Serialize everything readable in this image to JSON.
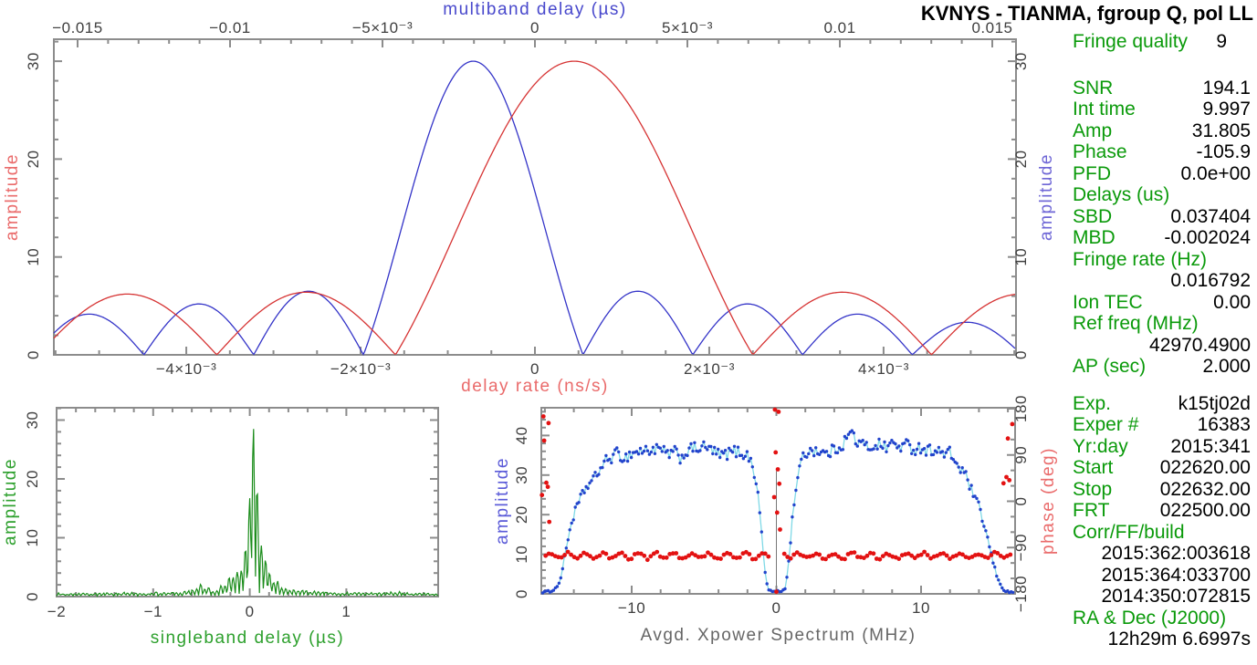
{
  "page_title": "KVNYS - TIANMA, fgroup Q, pol LL",
  "colors": {
    "red_curve": "#d63333",
    "blue_curve": "#3434c8",
    "green_curve": "#1a8c1a",
    "label_red": "#ea6b6b",
    "label_blue": "#5a5ad8",
    "label_blue_violet": "#6e66d6",
    "label_green": "#2da02d",
    "mbd_title_blue": "#4848cc",
    "info_green": "#0a9a0a",
    "spec_blue": "#2244cc",
    "cyan_line": "#7fd9e6",
    "spec_red": "#e31212",
    "frame_gray": "#8c8c8c",
    "tick_text": "#3f3f3f",
    "xpower_label_gray": "#666666",
    "marker_gray": "#777777",
    "black": "#000000"
  },
  "info_panel": {
    "rows": [
      {
        "label": "Fringe quality",
        "value": "9",
        "value_pad": 26
      },
      {
        "spacer": 27
      },
      {
        "label": "SNR",
        "value": "194.1"
      },
      {
        "label": "Int time",
        "value": "9.997"
      },
      {
        "label": "Amp",
        "value": "31.805"
      },
      {
        "label": "Phase",
        "value": "-105.9"
      },
      {
        "label": "PFD",
        "value": "0.0e+00"
      },
      {
        "label": "Delays (us)",
        "value": ""
      },
      {
        "label": "SBD",
        "value": "0.037404"
      },
      {
        "label": "MBD",
        "value": "-0.002024"
      },
      {
        "label": "Fringe rate (Hz)",
        "value": ""
      },
      {
        "label": "",
        "value": "0.016792"
      },
      {
        "label": "Ion TEC",
        "value": "0.00"
      },
      {
        "label": "Ref freq (MHz)",
        "value": ""
      },
      {
        "label": "",
        "value": "42970.4900"
      },
      {
        "label": "AP (sec)",
        "value": "2.000"
      },
      {
        "spacer": 17
      },
      {
        "label": "Exp.",
        "value": "k15tj02d"
      },
      {
        "label": "Exper #",
        "value": "16383"
      },
      {
        "label": "Yr:day",
        "value": "2015:341"
      },
      {
        "label": "Start",
        "value": "022620.00"
      },
      {
        "label": "Stop",
        "value": "022632.00"
      },
      {
        "label": "FRT",
        "value": "022500.00"
      },
      {
        "label": "Corr/FF/build",
        "value": ""
      },
      {
        "black_line": "2015:362:003618"
      },
      {
        "black_line": "2015:364:033700"
      },
      {
        "black_line": "2014:350:072815"
      },
      {
        "label": "RA & Dec (J2000)",
        "value": ""
      },
      {
        "black_line": "12h29m 6.6997s"
      }
    ]
  },
  "chart_data": [
    {
      "id": "delay-rate-multiband-fringe",
      "type": "line",
      "top_axis": {
        "label": "multiband delay (µs)",
        "unit": "µs",
        "tick_values": [
          -0.015,
          -0.01,
          -0.005,
          0,
          0.005,
          0.01,
          0.015
        ],
        "tick_labels": [
          "−0.015",
          "−0.01",
          "−5×10⁻³",
          "0",
          "5×10⁻³",
          "0.01",
          "0.015"
        ],
        "range": [
          -0.01578,
          0.01578
        ],
        "minor_step": 0.001
      },
      "bottom_axis": {
        "label": "delay rate (ns/s)",
        "unit": "ns/s",
        "tick_values": [
          -0.004,
          -0.002,
          0,
          0.002,
          0.004
        ],
        "tick_labels": [
          "−4×10⁻³",
          "−2×10⁻³",
          "0",
          "2×10⁻³",
          "4×10⁻³"
        ],
        "range": [
          -0.00552,
          0.00552
        ],
        "minor_step": 0.0005
      },
      "left_axis": {
        "label": "amplitude",
        "tick_values": [
          0,
          10,
          20,
          30
        ],
        "tick_labels": [
          "0",
          "10",
          "20",
          "30"
        ],
        "range": [
          0,
          32.2
        ],
        "minor_step": 2
      },
      "right_axis": {
        "label": "amplitude",
        "tick_values": [
          0,
          10,
          20,
          30
        ],
        "tick_labels": [
          "0",
          "10",
          "20",
          "30"
        ],
        "range": [
          0,
          32.2
        ],
        "minor_step": 2
      },
      "series": [
        {
          "name": "multiband delay fringe",
          "color_key": "blue_curve",
          "axis": "top",
          "peak_x": -0.002024,
          "peak_amplitude": 30.0,
          "first_null_halfwidth": 0.0036,
          "sidelobe_amplitude": 6.5,
          "sidelobe_decay": 0.8
        },
        {
          "name": "delay rate fringe",
          "color_key": "red_curve",
          "axis": "bottom",
          "peak_x": 0.00045,
          "peak_amplitude": 30.0,
          "first_null_halfwidth": 0.00205,
          "sidelobe_amplitude": 6.4,
          "sidelobe_decay": 0.97
        }
      ]
    },
    {
      "id": "singleband-delay-fringe",
      "type": "line",
      "x_axis": {
        "label": "singleband delay (µs)",
        "unit": "µs",
        "tick_values": [
          -2,
          -1,
          0,
          1
        ],
        "tick_labels": [
          "−2",
          "−1",
          "0",
          "1"
        ],
        "range": [
          -2,
          1.96
        ],
        "minor_step": 0.2
      },
      "y_axis": {
        "label": "amplitude",
        "tick_values": [
          0,
          10,
          20,
          30
        ],
        "tick_labels": [
          "0",
          "10",
          "20",
          "30"
        ],
        "range": [
          0,
          32.1
        ],
        "minor_step": 2
      },
      "series": [
        {
          "name": "singleband delay fringe",
          "color_key": "green_curve",
          "peak_x": 0.037404,
          "peak_amplitude": 30.0,
          "lobe_width": 0.042,
          "baseline_noise": 0.3,
          "envelope": [
            [
              -2,
              0.35
            ],
            [
              -1.4,
              0.4
            ],
            [
              -1,
              0.45
            ],
            [
              -0.7,
              0.5
            ],
            [
              -0.5,
              1.5
            ],
            [
              -0.38,
              0.9
            ],
            [
              -0.3,
              1.3
            ],
            [
              -0.22,
              2.4
            ],
            [
              -0.15,
              3.2
            ],
            [
              -0.1,
              4.5
            ],
            [
              -0.06,
              6.5
            ],
            [
              -0.02,
              10
            ],
            [
              0.037,
              30
            ],
            [
              0.09,
              9.5
            ],
            [
              0.15,
              5.2
            ],
            [
              0.22,
              3.8
            ],
            [
              0.3,
              2.2
            ],
            [
              0.4,
              1.2
            ],
            [
              0.55,
              0.8
            ],
            [
              0.8,
              0.55
            ],
            [
              1.2,
              0.45
            ],
            [
              1.96,
              0.35
            ]
          ]
        }
      ]
    },
    {
      "id": "avgd-xpower-spectrum",
      "type": "scatter",
      "x_axis": {
        "label": "Avgd. Xpower Spectrum (MHz)",
        "unit": "MHz",
        "tick_values": [
          -10,
          0,
          10
        ],
        "tick_labels": [
          "−10",
          "0",
          "10"
        ],
        "range": [
          -16.25,
          16.5
        ],
        "minor_step": 2
      },
      "left_axis": {
        "label": "amplitude",
        "tick_values": [
          0,
          10,
          20,
          30,
          40
        ],
        "tick_labels": [
          "0",
          "10",
          "20",
          "30",
          "40"
        ],
        "range": [
          0,
          47
        ],
        "minor_step": 2
      },
      "right_axis": {
        "label": "phase (deg)",
        "tick_values": [
          -180,
          -90,
          0,
          90,
          180
        ],
        "tick_labels": [
          "−180",
          "−90",
          "0",
          "90",
          "180"
        ],
        "range": [
          -180,
          180
        ],
        "minor_step": 30
      },
      "amplitude_series": {
        "name": "cross-power amplitude",
        "color_key": "spec_blue",
        "line_color_key": "cyan_line",
        "point_step_mhz": 0.125,
        "noise": 1.0,
        "profile": [
          [
            -16.2,
            0.4
          ],
          [
            -15.9,
            0.5
          ],
          [
            -15.6,
            0.7
          ],
          [
            -15.2,
            1.5
          ],
          [
            -14.9,
            4
          ],
          [
            -14.7,
            8
          ],
          [
            -14.5,
            12
          ],
          [
            -14.3,
            16
          ],
          [
            -14.1,
            18.5
          ],
          [
            -13.9,
            21
          ],
          [
            -13.6,
            23.5
          ],
          [
            -13.3,
            26
          ],
          [
            -13.0,
            27.5
          ],
          [
            -12.6,
            29
          ],
          [
            -12.2,
            31.5
          ],
          [
            -11.8,
            33.5
          ],
          [
            -11.4,
            34.5
          ],
          [
            -11.0,
            35.5
          ],
          [
            -10.5,
            34.2
          ],
          [
            -10.0,
            35.5
          ],
          [
            -9.5,
            36
          ],
          [
            -9.0,
            36.2
          ],
          [
            -8.5,
            36.5
          ],
          [
            -8.0,
            36.3
          ],
          [
            -7.5,
            35.2
          ],
          [
            -7.0,
            35.8
          ],
          [
            -6.6,
            34.2
          ],
          [
            -6.2,
            36
          ],
          [
            -5.6,
            36.8
          ],
          [
            -5.0,
            37
          ],
          [
            -4.4,
            36.2
          ],
          [
            -3.9,
            34.8
          ],
          [
            -3.4,
            35.4
          ],
          [
            -2.9,
            36
          ],
          [
            -2.4,
            35.6
          ],
          [
            -2.0,
            35
          ],
          [
            -1.7,
            33
          ],
          [
            -1.45,
            29.5
          ],
          [
            -1.25,
            24
          ],
          [
            -1.05,
            17
          ],
          [
            -0.9,
            10
          ],
          [
            -0.75,
            4.5
          ],
          [
            -0.6,
            1.5
          ],
          [
            -0.4,
            0.7
          ],
          [
            0,
            0.5
          ],
          [
            0.4,
            0.7
          ],
          [
            0.6,
            1.5
          ],
          [
            0.75,
            4.5
          ],
          [
            0.9,
            10
          ],
          [
            1.05,
            17
          ],
          [
            1.25,
            24
          ],
          [
            1.45,
            29.5
          ],
          [
            1.7,
            33
          ],
          [
            2.0,
            35.5
          ],
          [
            2.5,
            36.5
          ],
          [
            3.0,
            36
          ],
          [
            3.5,
            35.2
          ],
          [
            4.0,
            36.5
          ],
          [
            4.5,
            37.5
          ],
          [
            4.9,
            39.5
          ],
          [
            5.2,
            41
          ],
          [
            5.5,
            38.5
          ],
          [
            6.0,
            37.5
          ],
          [
            6.5,
            37
          ],
          [
            7.0,
            38
          ],
          [
            7.5,
            37
          ],
          [
            8.0,
            38
          ],
          [
            8.5,
            37.2
          ],
          [
            9.0,
            37.6
          ],
          [
            9.5,
            36.6
          ],
          [
            10.0,
            37
          ],
          [
            10.5,
            36.2
          ],
          [
            11.0,
            36.6
          ],
          [
            11.5,
            35.2
          ],
          [
            12.0,
            35.6
          ],
          [
            12.3,
            33.8
          ],
          [
            12.6,
            32
          ],
          [
            13.0,
            30.5
          ],
          [
            13.3,
            28
          ],
          [
            13.6,
            25
          ],
          [
            14.0,
            22
          ],
          [
            14.3,
            18
          ],
          [
            14.6,
            14
          ],
          [
            14.9,
            9
          ],
          [
            15.2,
            5
          ],
          [
            15.5,
            2
          ],
          [
            15.8,
            0.8
          ],
          [
            16.1,
            0.4
          ],
          [
            16.4,
            0.4
          ]
        ]
      },
      "phase_series": {
        "name": "cross-power phase",
        "color_key": "spec_red",
        "phase_deg": -105.9,
        "wiggle_deg": 5,
        "noise_deg": 6,
        "point_step_mhz": 0.22,
        "center_gap_halfwidth_mhz": 0.5,
        "outliers": [
          [
            -16.1,
            165
          ],
          [
            -15.75,
            152
          ],
          [
            -16.05,
            118
          ],
          [
            -15.9,
            36
          ],
          [
            -15.8,
            28
          ],
          [
            -16.2,
            12
          ],
          [
            -15.7,
            -40
          ],
          [
            -0.1,
            178
          ],
          [
            0.15,
            174
          ],
          [
            -0.05,
            95
          ],
          [
            0.1,
            62
          ],
          [
            0.2,
            34
          ],
          [
            -0.15,
            8
          ],
          [
            0.05,
            -22
          ],
          [
            0.25,
            -55
          ],
          [
            0.0,
            -176
          ],
          [
            16.3,
            150
          ],
          [
            16.0,
            122
          ],
          [
            15.9,
            47
          ],
          [
            16.1,
            41
          ],
          [
            15.7,
            35
          ]
        ]
      },
      "marker_line": {
        "x": 0,
        "amplitude": 31
      }
    }
  ]
}
